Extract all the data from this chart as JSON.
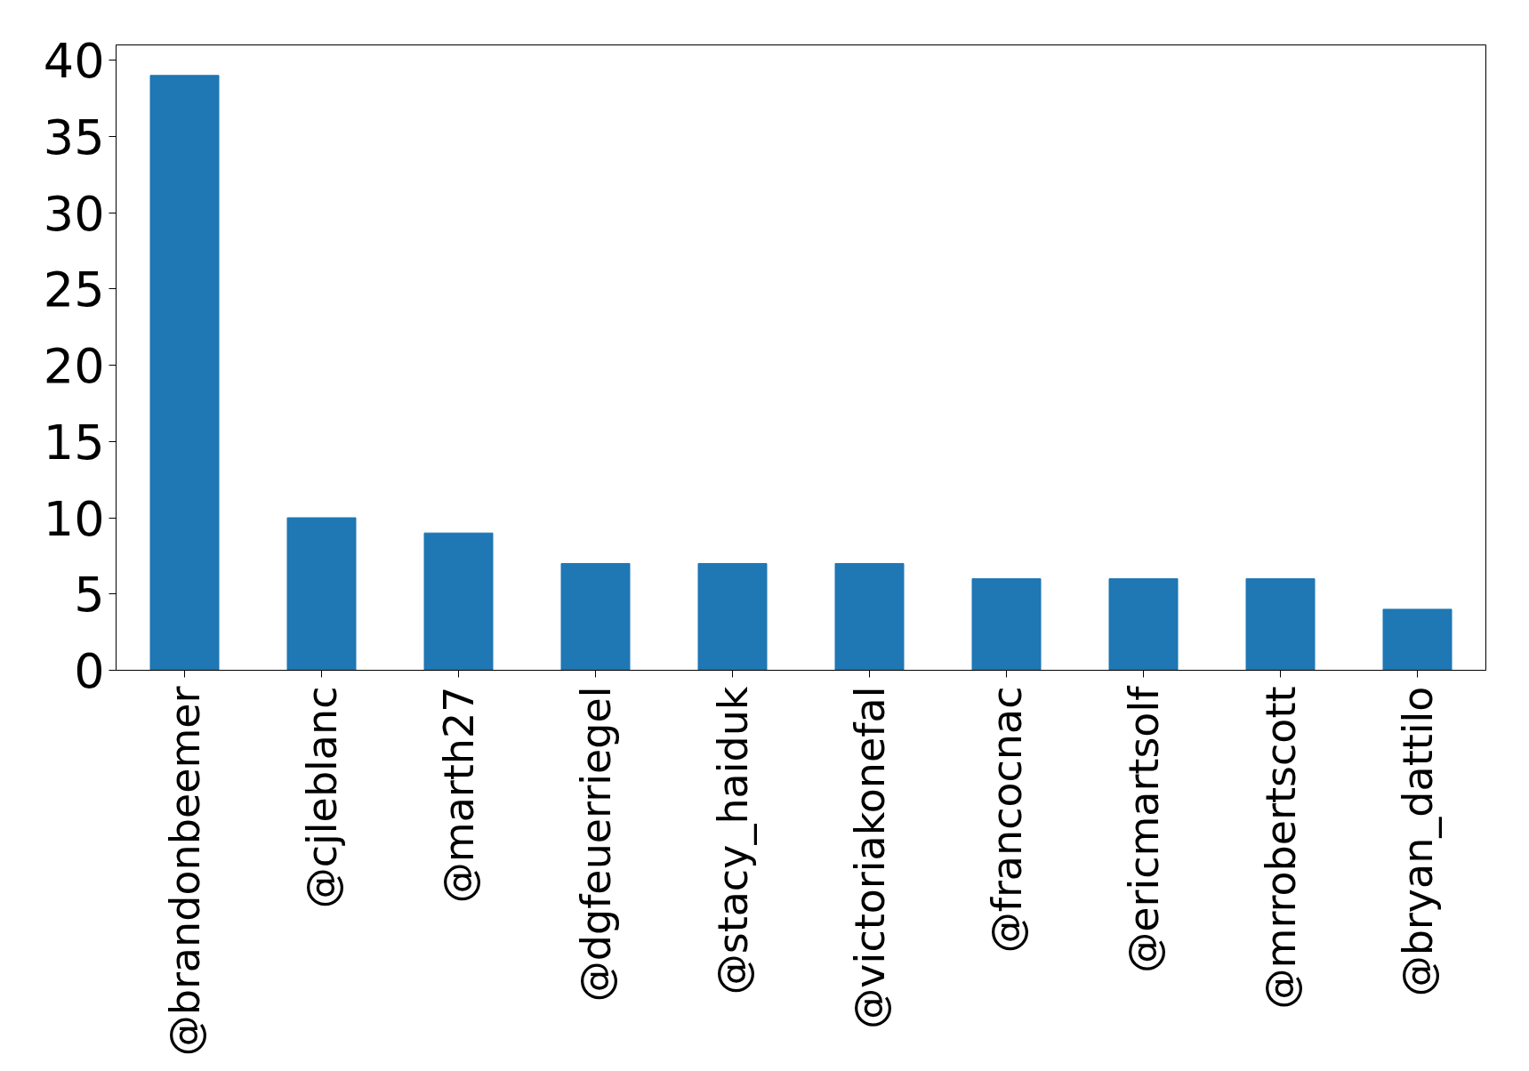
{
  "chart_data": {
    "type": "bar",
    "categories": [
      "@brandonbeemer",
      "@cjleblanc",
      "@marth27",
      "@dgfeuerriegel",
      "@stacy_haiduk",
      "@victoriakonefal",
      "@francocnac",
      "@ericmartsolf",
      "@mrrobertscott",
      "@bryan_dattilo"
    ],
    "values": [
      39,
      10,
      9,
      7,
      7,
      7,
      6,
      6,
      6,
      4
    ],
    "color": "#1f77b4",
    "ylim": [
      0,
      41
    ],
    "yticks": [
      0,
      5,
      10,
      15,
      20,
      25,
      30,
      35,
      40
    ],
    "grid": false
  }
}
